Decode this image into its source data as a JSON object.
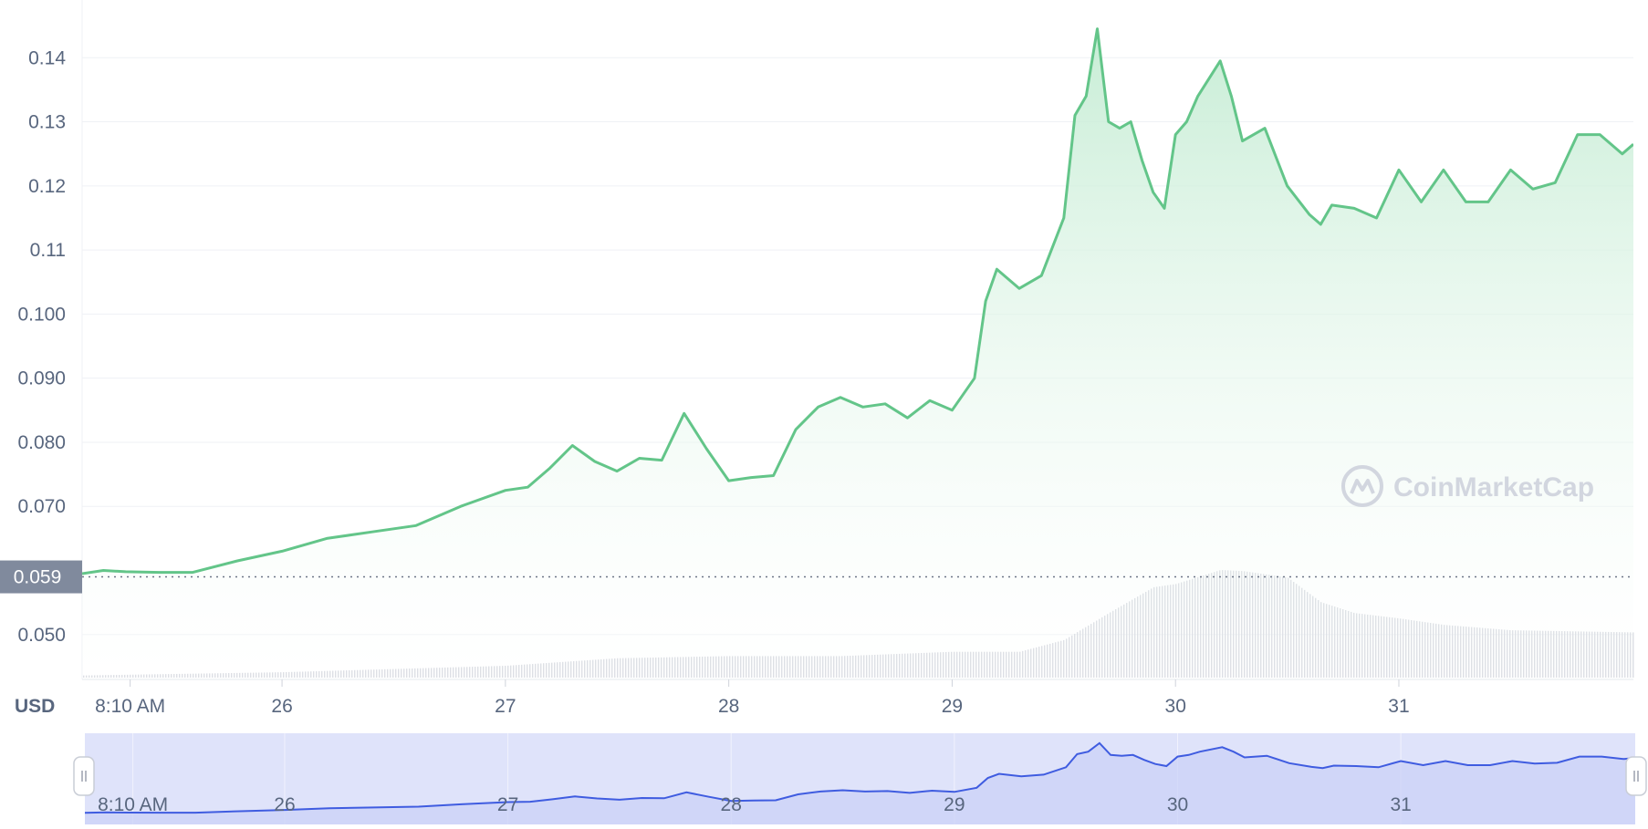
{
  "colors": {
    "line": "#63c589",
    "area_top": "#c4ecd3",
    "area_bottom": "#ffffff",
    "grid": "#eff1f5",
    "volume": "#d4d7de",
    "nav_fill": "#dfe3fa",
    "nav_line": "#3f5ce0",
    "label_bg": "#808a9d",
    "tick_text": "#58667e",
    "watermark": "#d2d6df"
  },
  "watermark": {
    "brand": "CoinMarketCap",
    "icon": "coinmarketcap-logo-icon"
  },
  "chart_data": {
    "type": "line",
    "currency": "USD",
    "current_price_label": "0.059",
    "y_ticks": [
      "0.050",
      "0.070",
      "0.080",
      "0.090",
      "0.100",
      "0.11",
      "0.12",
      "0.13",
      "0.14"
    ],
    "y_tick_values": [
      0.05,
      0.07,
      0.08,
      0.09,
      0.1,
      0.11,
      0.12,
      0.13,
      0.14
    ],
    "ylim": [
      0.043,
      0.149
    ],
    "x_ticks": [
      "8:10 AM",
      "26",
      "27",
      "28",
      "29",
      "30",
      "31"
    ],
    "x_tick_positions": [
      0.32,
      1.0,
      2.0,
      3.0,
      4.0,
      5.0,
      6.0
    ],
    "xlim": [
      0.105,
      7.05
    ],
    "grid": true,
    "series": [
      {
        "x": [
          0.105,
          0.2,
          0.3,
          0.45,
          0.6,
          0.8,
          1.0,
          1.2,
          1.4,
          1.6,
          1.8,
          2.0,
          2.1,
          2.2,
          2.3,
          2.4,
          2.5,
          2.6,
          2.7,
          2.8,
          2.9,
          3.0,
          3.1,
          3.2,
          3.3,
          3.4,
          3.5,
          3.6,
          3.7,
          3.8,
          3.9,
          4.0,
          4.1,
          4.15,
          4.2,
          4.3,
          4.4,
          4.5,
          4.55,
          4.6,
          4.65,
          4.7,
          4.75,
          4.8,
          4.85,
          4.9,
          4.95,
          5.0,
          5.05,
          5.1,
          5.2,
          5.25,
          5.3,
          5.4,
          5.5,
          5.6,
          5.65,
          5.7,
          5.8,
          5.9,
          6.0,
          6.1,
          6.2,
          6.3,
          6.4,
          6.5,
          6.6,
          6.7,
          6.8,
          6.9,
          7.0,
          7.05
        ],
        "y": [
          0.0595,
          0.06,
          0.0598,
          0.0597,
          0.0597,
          0.0615,
          0.063,
          0.065,
          0.066,
          0.067,
          0.07,
          0.0725,
          0.073,
          0.076,
          0.0795,
          0.077,
          0.0755,
          0.0775,
          0.0772,
          0.0845,
          0.079,
          0.074,
          0.0745,
          0.0748,
          0.082,
          0.0855,
          0.087,
          0.0855,
          0.086,
          0.0838,
          0.0865,
          0.085,
          0.09,
          0.102,
          0.107,
          0.104,
          0.106,
          0.115,
          0.131,
          0.134,
          0.1445,
          0.13,
          0.129,
          0.13,
          0.124,
          0.119,
          0.1165,
          0.128,
          0.13,
          0.134,
          0.1395,
          0.134,
          0.127,
          0.129,
          0.12,
          0.1155,
          0.114,
          0.117,
          0.1165,
          0.115,
          0.1225,
          0.1175,
          0.1225,
          0.1175,
          0.1175,
          0.1225,
          0.1195,
          0.1205,
          0.128,
          0.128,
          0.125,
          0.1265
        ]
      }
    ],
    "volume": {
      "x": [
        0.105,
        1.0,
        2.0,
        2.5,
        3.0,
        3.5,
        4.0,
        4.3,
        4.5,
        4.7,
        4.9,
        5.0,
        5.2,
        5.3,
        5.5,
        5.65,
        5.8,
        6.0,
        6.2,
        6.5,
        7.05
      ],
      "rel": [
        0.02,
        0.05,
        0.11,
        0.18,
        0.2,
        0.2,
        0.24,
        0.24,
        0.35,
        0.6,
        0.84,
        0.87,
        1.0,
        0.99,
        0.93,
        0.7,
        0.6,
        0.55,
        0.49,
        0.44,
        0.42
      ]
    },
    "navigator": {
      "x_ticks": [
        "8:10 AM",
        "26",
        "27",
        "28",
        "29",
        "30",
        "31"
      ]
    }
  }
}
